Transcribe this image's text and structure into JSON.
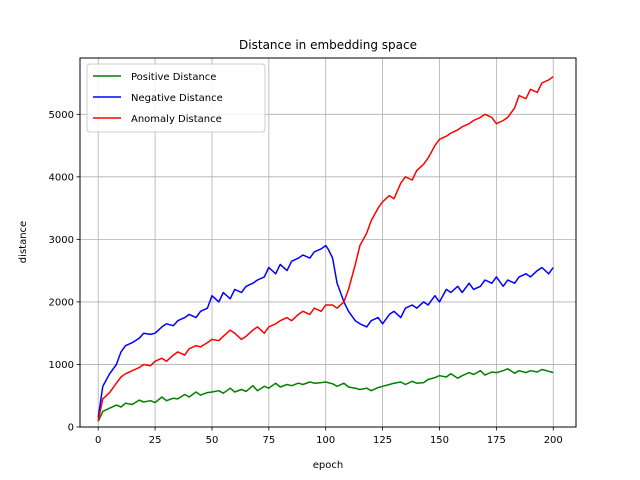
{
  "chart_data": {
    "type": "line",
    "title": "Distance in embedding space",
    "xlabel": "epoch",
    "ylabel": "distance",
    "xlim": [
      -8,
      210
    ],
    "ylim": [
      0,
      5900
    ],
    "xticks": [
      0,
      25,
      50,
      75,
      100,
      125,
      150,
      175,
      200
    ],
    "yticks": [
      0,
      1000,
      2000,
      3000,
      4000,
      5000
    ],
    "grid": true,
    "legend_position": "top-left",
    "series": [
      {
        "name": "Positive Distance",
        "color": "#008000",
        "x": [
          0,
          2,
          5,
          8,
          10,
          12,
          15,
          18,
          20,
          23,
          25,
          28,
          30,
          33,
          35,
          38,
          40,
          43,
          45,
          48,
          50,
          53,
          55,
          58,
          60,
          63,
          65,
          68,
          70,
          73,
          75,
          78,
          80,
          83,
          85,
          88,
          90,
          93,
          95,
          98,
          100,
          103,
          105,
          108,
          110,
          113,
          115,
          118,
          120,
          123,
          125,
          128,
          130,
          133,
          135,
          138,
          140,
          143,
          145,
          148,
          150,
          153,
          155,
          158,
          160,
          163,
          165,
          168,
          170,
          173,
          175,
          178,
          180,
          183,
          185,
          188,
          190,
          193,
          195,
          198,
          200
        ],
        "y": [
          90,
          250,
          300,
          350,
          320,
          380,
          360,
          430,
          400,
          420,
          390,
          480,
          420,
          460,
          450,
          520,
          480,
          560,
          510,
          550,
          560,
          580,
          540,
          620,
          560,
          600,
          570,
          660,
          580,
          650,
          620,
          700,
          640,
          680,
          660,
          700,
          680,
          720,
          700,
          710,
          720,
          690,
          650,
          700,
          640,
          620,
          600,
          620,
          580,
          630,
          650,
          680,
          700,
          720,
          680,
          730,
          700,
          710,
          760,
          790,
          820,
          800,
          850,
          780,
          820,
          870,
          840,
          900,
          830,
          880,
          870,
          900,
          930,
          860,
          900,
          870,
          900,
          880,
          920,
          890,
          870
        ]
      },
      {
        "name": "Negative Distance",
        "color": "#0000ff",
        "x": [
          0,
          2,
          5,
          8,
          10,
          12,
          15,
          18,
          20,
          23,
          25,
          28,
          30,
          33,
          35,
          38,
          40,
          43,
          45,
          48,
          50,
          53,
          55,
          58,
          60,
          63,
          65,
          68,
          70,
          73,
          75,
          78,
          80,
          83,
          85,
          88,
          90,
          93,
          95,
          98,
          100,
          101,
          103,
          105,
          107,
          108,
          110,
          113,
          115,
          118,
          120,
          123,
          125,
          128,
          130,
          133,
          135,
          138,
          140,
          143,
          145,
          148,
          150,
          153,
          155,
          158,
          160,
          163,
          165,
          168,
          170,
          173,
          175,
          178,
          180,
          183,
          185,
          188,
          190,
          193,
          195,
          198,
          200
        ],
        "y": [
          150,
          650,
          850,
          1000,
          1200,
          1300,
          1350,
          1420,
          1500,
          1480,
          1500,
          1600,
          1650,
          1620,
          1700,
          1750,
          1800,
          1750,
          1850,
          1900,
          2100,
          2000,
          2150,
          2050,
          2200,
          2150,
          2250,
          2300,
          2350,
          2400,
          2550,
          2450,
          2600,
          2500,
          2650,
          2700,
          2750,
          2700,
          2800,
          2850,
          2900,
          2850,
          2700,
          2300,
          2100,
          2000,
          1850,
          1700,
          1650,
          1600,
          1700,
          1750,
          1650,
          1800,
          1850,
          1750,
          1900,
          1950,
          1900,
          2000,
          1950,
          2100,
          2000,
          2200,
          2150,
          2250,
          2150,
          2300,
          2200,
          2250,
          2350,
          2300,
          2400,
          2250,
          2350,
          2300,
          2400,
          2450,
          2400,
          2500,
          2550,
          2450,
          2550
        ]
      },
      {
        "name": "Anomaly Distance",
        "color": "#ff0000",
        "x": [
          0,
          2,
          5,
          8,
          10,
          12,
          15,
          18,
          20,
          23,
          25,
          28,
          30,
          33,
          35,
          38,
          40,
          43,
          45,
          48,
          50,
          53,
          55,
          58,
          60,
          63,
          65,
          68,
          70,
          73,
          75,
          78,
          80,
          83,
          85,
          88,
          90,
          93,
          95,
          98,
          100,
          103,
          105,
          108,
          110,
          113,
          115,
          118,
          120,
          123,
          125,
          128,
          130,
          133,
          135,
          138,
          140,
          143,
          145,
          148,
          150,
          153,
          155,
          158,
          160,
          163,
          165,
          168,
          170,
          173,
          175,
          178,
          180,
          183,
          185,
          188,
          190,
          193,
          195,
          198,
          200
        ],
        "y": [
          100,
          450,
          550,
          700,
          800,
          850,
          900,
          950,
          1000,
          980,
          1050,
          1100,
          1050,
          1150,
          1200,
          1150,
          1250,
          1300,
          1280,
          1350,
          1400,
          1380,
          1450,
          1550,
          1500,
          1400,
          1450,
          1550,
          1600,
          1500,
          1600,
          1650,
          1700,
          1750,
          1700,
          1800,
          1850,
          1800,
          1900,
          1850,
          1950,
          1950,
          1900,
          2000,
          2200,
          2600,
          2900,
          3100,
          3300,
          3500,
          3600,
          3700,
          3650,
          3900,
          4000,
          3950,
          4100,
          4200,
          4300,
          4500,
          4600,
          4650,
          4700,
          4750,
          4800,
          4850,
          4900,
          4950,
          5000,
          4950,
          4850,
          4900,
          4950,
          5100,
          5300,
          5250,
          5400,
          5350,
          5500,
          5550,
          5600
        ]
      }
    ]
  }
}
